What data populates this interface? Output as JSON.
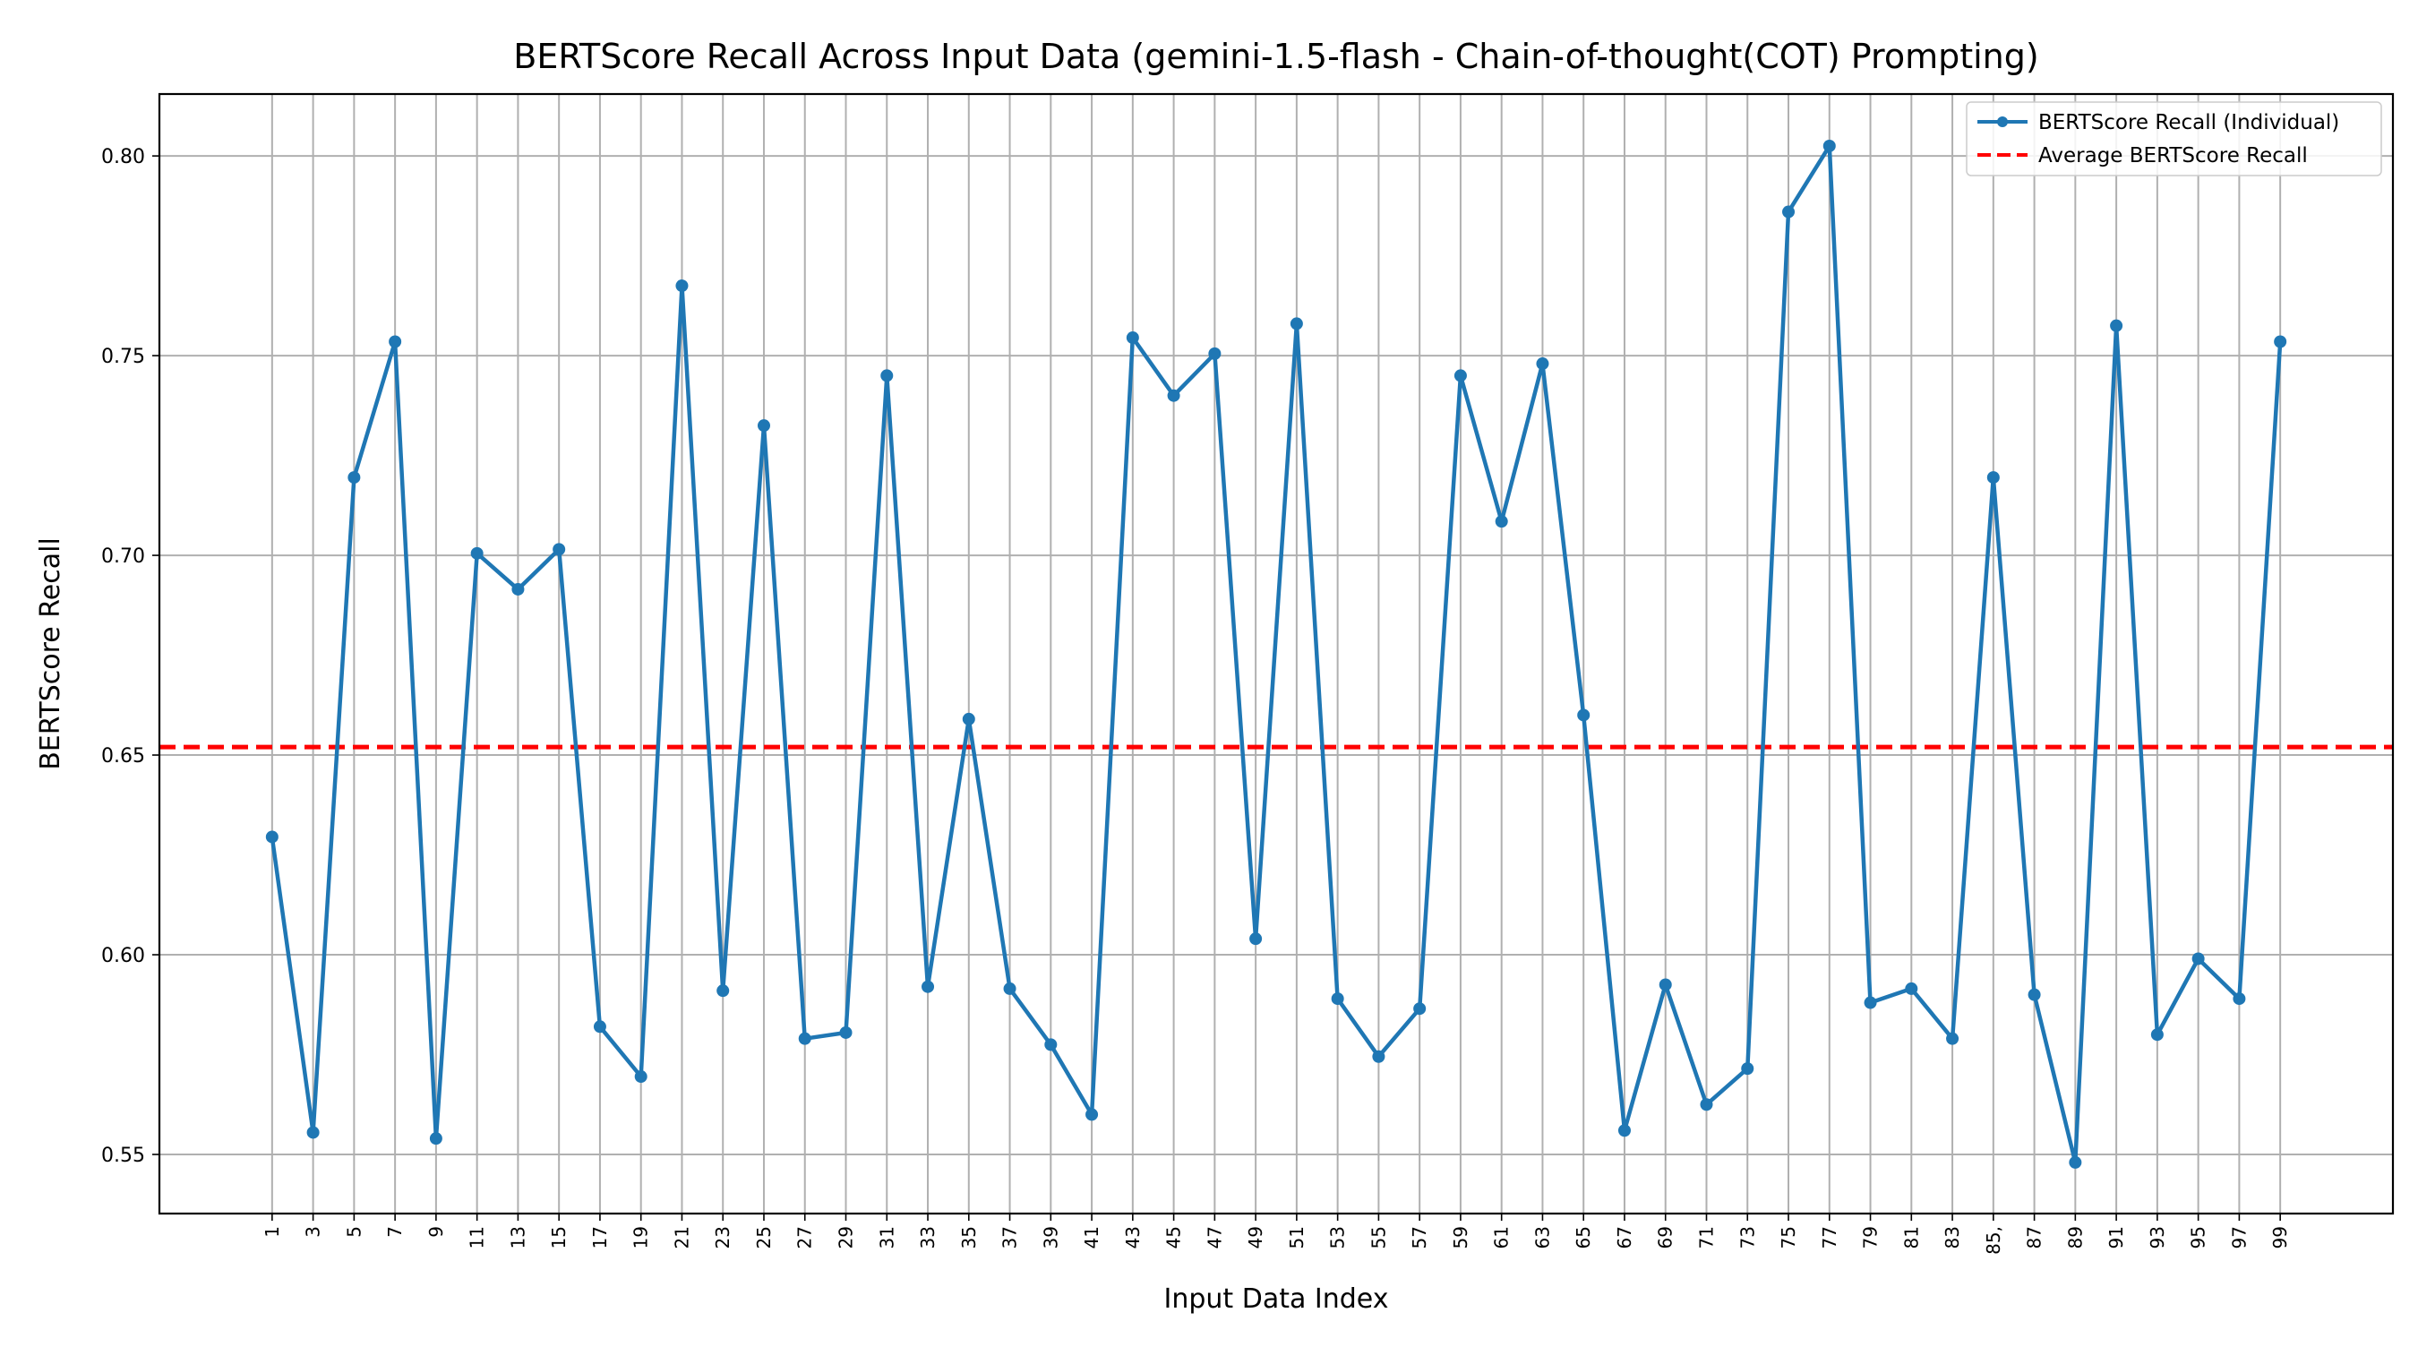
{
  "chart_data": {
    "type": "line",
    "title": "BERTScore Recall Across Input Data (gemini-1.5-flash - Chain-of-thought(COT) Prompting)",
    "xlabel": "Input Data Index",
    "ylabel": "BERTScore Recall",
    "x": [
      1,
      3,
      5,
      7,
      9,
      11,
      13,
      15,
      17,
      19,
      21,
      23,
      25,
      27,
      29,
      31,
      33,
      35,
      37,
      39,
      41,
      43,
      45,
      47,
      49,
      51,
      53,
      55,
      57,
      59,
      61,
      63,
      65,
      67,
      69,
      71,
      73,
      75,
      77,
      79,
      81,
      83,
      85,
      87,
      89,
      91,
      93,
      95,
      97,
      99
    ],
    "xticks": [
      "1",
      "3",
      "5",
      "7",
      "9",
      "11",
      "13",
      "15",
      "17",
      "19",
      "21",
      "23",
      "25",
      "27",
      "29",
      "31",
      "33",
      "35",
      "37",
      "39",
      "41",
      "43",
      "45",
      "47",
      "49",
      "51",
      "53",
      "55",
      "57",
      "59",
      "61",
      "63",
      "65",
      "67",
      "69",
      "71",
      "73",
      "75",
      "77",
      "79",
      "81",
      "83",
      "85,",
      "87",
      "89",
      "91",
      "93",
      "95",
      "97",
      "99"
    ],
    "yticks": [
      "0.55",
      "0.60",
      "0.65",
      "0.70",
      "0.75",
      "0.80"
    ],
    "ytick_values": [
      0.55,
      0.6,
      0.65,
      0.7,
      0.75,
      0.8
    ],
    "xlim": [
      -4.5,
      104.5
    ],
    "ylim": [
      0.5352,
      0.8155
    ],
    "grid": true,
    "legend_position": "top-right",
    "series": [
      {
        "name": "BERTScore Recall (Individual)",
        "color": "#1f77b4",
        "values": [
          0.6295,
          0.5555,
          0.7195,
          0.7535,
          0.554,
          0.7005,
          0.6915,
          0.7015,
          0.582,
          0.5695,
          0.7675,
          0.591,
          0.7325,
          0.579,
          0.5805,
          0.745,
          0.592,
          0.659,
          0.5915,
          0.5775,
          0.56,
          0.7545,
          0.74,
          0.7505,
          0.604,
          0.758,
          0.589,
          0.5745,
          0.5865,
          0.745,
          0.7085,
          0.748,
          0.66,
          0.556,
          0.5925,
          0.5625,
          0.5715,
          0.786,
          0.8025,
          0.588,
          0.5915,
          0.579,
          0.7195,
          0.59,
          0.548,
          0.7575,
          0.58,
          0.599,
          0.589,
          0.7535
        ]
      }
    ],
    "average": {
      "name": "Average BERTScore Recall",
      "color": "#ff0000",
      "value": 0.652
    }
  }
}
